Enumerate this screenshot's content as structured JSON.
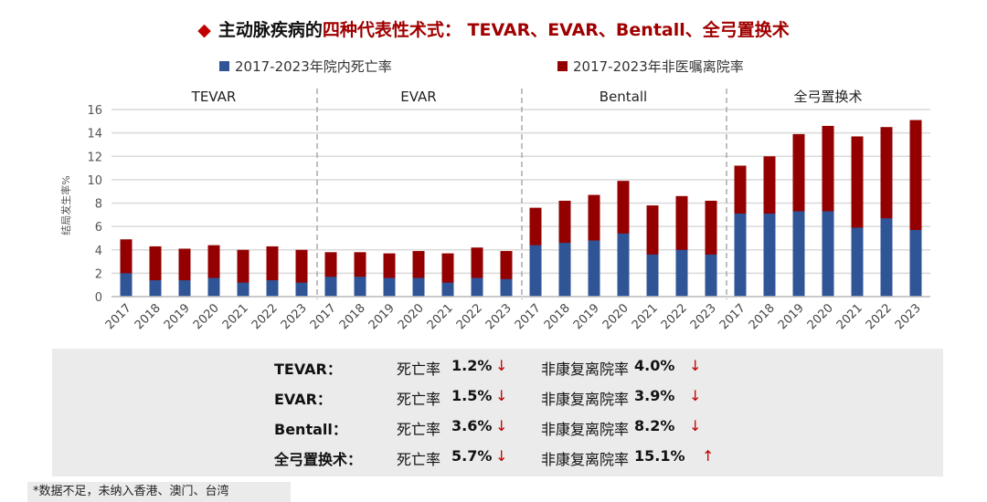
{
  "title": {
    "marker": "◆",
    "part1": "主动脉疾病的",
    "part2": "四种代表性术式： TEVAR、EVAR、Bentall、全弓置换术"
  },
  "colors": {
    "mortality": "#2f5597",
    "non_home": "#940000",
    "title_red": "#a00000"
  },
  "chart_data": {
    "type": "bar",
    "ylabel": "结局发生率%",
    "ylim": [
      0,
      16
    ],
    "yticks": [
      0,
      2,
      4,
      6,
      8,
      10,
      12,
      14,
      16
    ],
    "grid": true,
    "legend_position": "top",
    "groups": [
      "TEVAR",
      "EVAR",
      "Bentall",
      "全弓置换术"
    ],
    "years": [
      "2017",
      "2018",
      "2019",
      "2020",
      "2021",
      "2022",
      "2023"
    ],
    "series": [
      {
        "name": "2017-2023年院内死亡率",
        "values": [
          [
            2.0,
            1.4,
            1.4,
            1.6,
            1.2,
            1.4,
            1.2
          ],
          [
            1.7,
            1.7,
            1.6,
            1.6,
            1.2,
            1.6,
            1.5
          ],
          [
            4.4,
            4.6,
            4.8,
            5.4,
            3.6,
            4.0,
            3.6
          ],
          [
            7.1,
            7.1,
            7.3,
            7.3,
            5.9,
            6.7,
            5.7
          ]
        ]
      },
      {
        "name": "2017-2023年非医嘱离院率",
        "values": [
          [
            4.9,
            4.3,
            4.1,
            4.4,
            4.0,
            4.3,
            4.0
          ],
          [
            3.8,
            3.8,
            3.7,
            3.9,
            3.7,
            4.2,
            3.9
          ],
          [
            7.6,
            8.2,
            8.7,
            9.9,
            7.8,
            8.6,
            8.2
          ],
          [
            11.2,
            12.0,
            13.9,
            14.6,
            13.7,
            14.5,
            15.1
          ]
        ]
      }
    ]
  },
  "summary": [
    {
      "name": "TEVAR：",
      "mort_label": "死亡率",
      "mort": "1.2%",
      "mort_arrow": "↓",
      "nh_label": "非康复离院率",
      "nh": "4.0%",
      "nh_arrow": "↓"
    },
    {
      "name": "EVAR：",
      "mort_label": "死亡率",
      "mort": "1.5%",
      "mort_arrow": "↓",
      "nh_label": "非康复离院率",
      "nh": "3.9%",
      "nh_arrow": "↓"
    },
    {
      "name": "Bentall：",
      "mort_label": "死亡率",
      "mort": "3.6%",
      "mort_arrow": "↓",
      "nh_label": "非康复离院率",
      "nh": "8.2%",
      "nh_arrow": "↓"
    },
    {
      "name": "全弓置换术：",
      "mort_label": "死亡率",
      "mort": "5.7%",
      "mort_arrow": "↓",
      "nh_label": "非康复离院率",
      "nh": "15.1%",
      "nh_arrow": "↑"
    }
  ],
  "footnote": "*数据不足，未纳入香港、澳门、台湾"
}
